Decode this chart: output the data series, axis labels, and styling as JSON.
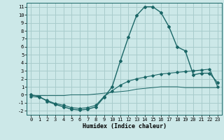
{
  "xlabel": "Humidex (Indice chaleur)",
  "background_color": "#cce8e8",
  "grid_color": "#a8cccc",
  "line_color": "#1a6666",
  "xlim": [
    -0.5,
    23.5
  ],
  "ylim": [
    -2.5,
    11.5
  ],
  "xticks": [
    0,
    1,
    2,
    3,
    4,
    5,
    6,
    7,
    8,
    9,
    10,
    11,
    12,
    13,
    14,
    15,
    16,
    17,
    18,
    19,
    20,
    21,
    22,
    23
  ],
  "yticks": [
    -2,
    -1,
    0,
    1,
    2,
    3,
    4,
    5,
    6,
    7,
    8,
    9,
    10,
    11
  ],
  "curve1_x": [
    0,
    1,
    2,
    3,
    4,
    5,
    6,
    7,
    8,
    9,
    10,
    11,
    12,
    13,
    14,
    15,
    16,
    17,
    18,
    19,
    20,
    21,
    22,
    23
  ],
  "curve1_y": [
    0.0,
    -0.2,
    -0.8,
    -1.2,
    -1.5,
    -1.8,
    -1.9,
    -1.8,
    -1.5,
    -0.3,
    1.0,
    4.2,
    7.2,
    9.9,
    11.0,
    11.0,
    10.3,
    8.5,
    6.0,
    5.5,
    2.5,
    2.7,
    2.7,
    1.5
  ],
  "curve2_x": [
    0,
    1,
    2,
    3,
    4,
    5,
    6,
    7,
    8,
    9,
    10,
    11,
    12,
    13,
    14,
    15,
    16,
    17,
    18,
    19,
    20,
    21,
    22,
    23
  ],
  "curve2_y": [
    -0.2,
    -0.3,
    -0.7,
    -1.1,
    -1.3,
    -1.6,
    -1.7,
    -1.6,
    -1.3,
    -0.2,
    0.5,
    1.2,
    1.7,
    2.0,
    2.2,
    2.4,
    2.6,
    2.7,
    2.8,
    2.9,
    3.0,
    3.1,
    3.2,
    1.0
  ],
  "curve3_x": [
    0,
    1,
    2,
    3,
    4,
    5,
    6,
    7,
    8,
    9,
    10,
    11,
    12,
    13,
    14,
    15,
    16,
    17,
    18,
    19,
    20,
    21,
    22,
    23
  ],
  "curve3_y": [
    -0.1,
    -0.1,
    -0.1,
    -0.1,
    -0.1,
    0.0,
    0.0,
    0.0,
    0.1,
    0.2,
    0.3,
    0.4,
    0.5,
    0.7,
    0.8,
    0.9,
    1.0,
    1.0,
    1.0,
    0.9,
    0.9,
    0.9,
    0.9,
    0.9
  ]
}
